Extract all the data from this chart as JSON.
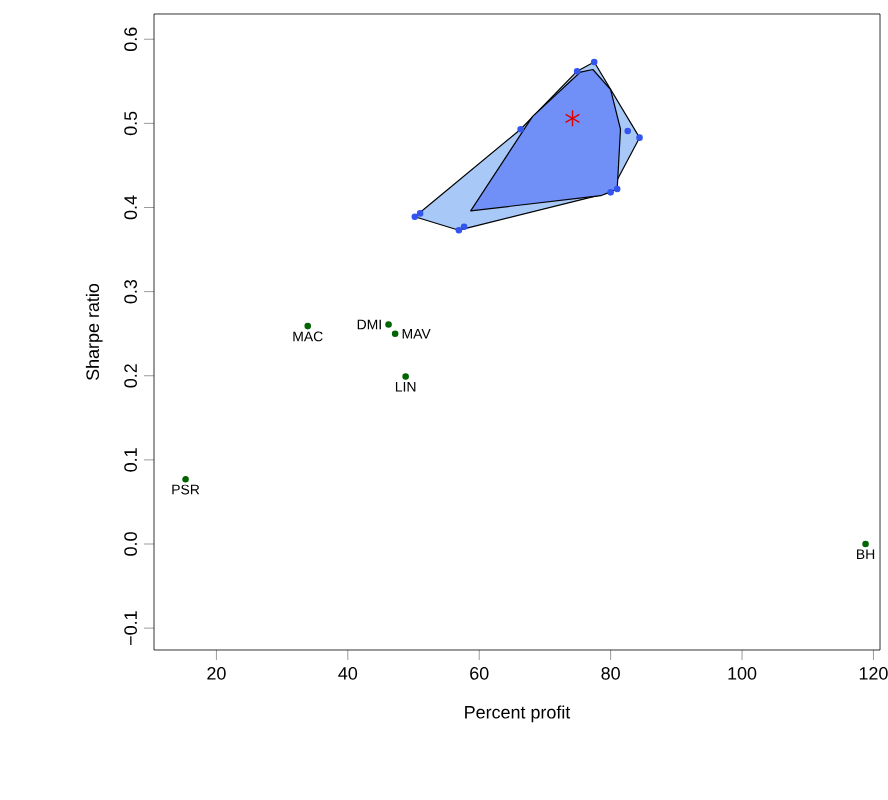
{
  "chart_data": {
    "type": "scatter",
    "xlabel": "Percent profit",
    "ylabel": "Sharpe ratio",
    "xlim": [
      10.5,
      121
    ],
    "ylim": [
      -0.126,
      0.63
    ],
    "xticks": [
      20,
      40,
      60,
      80,
      100,
      120
    ],
    "yticks": [
      {
        "value": -0.1,
        "label": "−0.1"
      },
      {
        "value": 0,
        "label": "0.0"
      },
      0.1,
      0.2,
      0.3,
      0.4,
      0.5,
      0.6
    ],
    "grid": false,
    "series": [
      {
        "type": "area",
        "marker": "none",
        "color": "#a8c8f8",
        "x": [
          50.2,
          56.9,
          80.0,
          84.4,
          77.5,
          74.9,
          66.3
        ],
        "values": [
          0.389,
          0.373,
          0.418,
          0.483,
          0.573,
          0.562,
          0.493
        ]
      },
      {
        "type": "area",
        "marker": "none",
        "color": "#7090f8",
        "x": [
          58.7,
          78.5,
          81.0,
          81.5,
          80.0,
          77.3,
          75.4,
          68.1
        ],
        "values": [
          0.396,
          0.414,
          0.422,
          0.493,
          0.54,
          0.564,
          0.561,
          0.508
        ]
      },
      {
        "marker": "circle",
        "color": "#3355ee",
        "x": [
          50.2,
          51.0,
          56.9,
          57.7,
          80.0,
          81.0,
          84.4,
          82.6,
          77.5,
          74.9,
          66.3
        ],
        "values": [
          0.389,
          0.393,
          0.373,
          0.377,
          0.418,
          0.422,
          0.483,
          0.491,
          0.573,
          0.562,
          0.493
        ]
      },
      {
        "marker": "cross",
        "color": "#dd0000",
        "x": [
          74.2
        ],
        "values": [
          0.506
        ]
      },
      {
        "marker": "circle",
        "color": "#006400",
        "x": [
          15.3,
          33.9,
          46.2,
          47.2,
          48.8,
          118.8
        ],
        "values": [
          0.077,
          0.259,
          0.261,
          0.25,
          0.199,
          0.0
        ],
        "value_labels": [
          "PSR",
          "MAC",
          "DMI",
          "MAV",
          "LIN",
          "BH"
        ]
      }
    ]
  }
}
